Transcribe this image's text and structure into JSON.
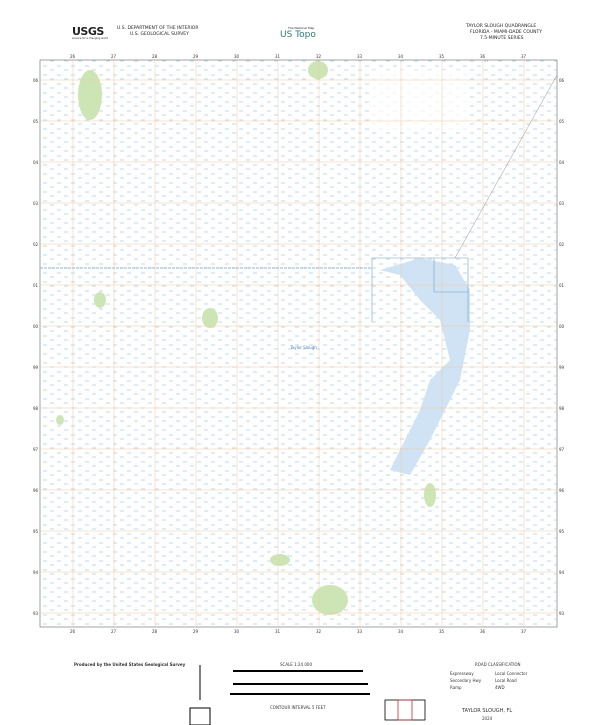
{
  "header": {
    "logo": "USGS",
    "logo_tagline": "science for a changing world",
    "dept": "U.S. DEPARTMENT OF THE INTERIOR",
    "survey": "U.S. GEOLOGICAL SURVEY",
    "ustopo_tag": "The National Map",
    "ustopo": "US Topo",
    "quad_title": "TAYLOR SLOUGH QUADRANGLE",
    "quad_state": "FLORIDA - MIAMI-DADE COUNTY",
    "quad_series": "7.5-MINUTE SERIES"
  },
  "map": {
    "top_labels": [
      "26",
      "27",
      "28",
      "29",
      "30",
      "31",
      "32",
      "33",
      "34",
      "35",
      "36",
      "37"
    ],
    "side_labels": [
      "06",
      "05",
      "04",
      "03",
      "02",
      "01",
      "00",
      "99",
      "98",
      "97",
      "96",
      "95",
      "94",
      "93"
    ],
    "feature_label": "Taylor Slough",
    "colors": {
      "water": "#cfe3f5",
      "marsh": "#9cc3e6",
      "vegetation": "#cde5b5",
      "grid": "#f2c79a",
      "boundary": "#6f9fc8"
    }
  },
  "footer": {
    "produced_by": "Produced by the United States Geological Survey",
    "scale": "SCALE 1:24 000",
    "contour_note": "CONTOUR INTERVAL 5 FEET",
    "quad_name": "TAYLOR SLOUGH, FL",
    "year": "2024",
    "legend_title": "ROAD CLASSIFICATION",
    "legend_items": [
      "Expressway",
      "Secondary Hwy",
      "Ramp",
      "Local Connector",
      "Local Road",
      "4WD"
    ]
  }
}
